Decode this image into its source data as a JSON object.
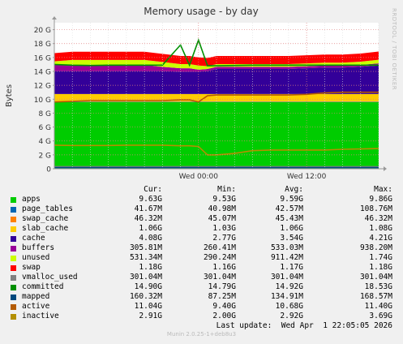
{
  "chart_data": {
    "type": "area",
    "title": "Memory usage - by day",
    "ylabel": "Bytes",
    "side_label": "RRDTOOL / TOBI OETIKER",
    "ylim": [
      0,
      21
    ],
    "y_ticks": [
      "0",
      "2 G",
      "4 G",
      "6 G",
      "8 G",
      "10 G",
      "12 G",
      "14 G",
      "16 G",
      "18 G",
      "20 G"
    ],
    "y_tick_values": [
      0,
      2,
      4,
      6,
      8,
      10,
      12,
      14,
      16,
      18,
      20
    ],
    "x_ticks": [
      "Wed 00:00",
      "Wed 12:00"
    ],
    "x_tick_hours": [
      10,
      22
    ],
    "x_range_hours": [
      -6,
      30
    ],
    "grid": true,
    "x": [
      -6,
      -4,
      -2,
      0,
      2,
      4,
      6,
      8,
      9,
      10,
      11,
      12,
      14,
      16,
      18,
      20,
      22,
      24,
      26,
      28,
      30
    ],
    "series": [
      {
        "name": "apps",
        "color": "#00cc00",
        "values": [
          9.6,
          9.6,
          9.6,
          9.6,
          9.6,
          9.6,
          9.6,
          9.6,
          9.6,
          9.6,
          9.6,
          9.6,
          9.6,
          9.6,
          9.6,
          9.6,
          9.6,
          9.6,
          9.6,
          9.6,
          9.6
        ]
      },
      {
        "name": "page_tables",
        "color": "#0066b3",
        "values": [
          0.04,
          0.04,
          0.04,
          0.04,
          0.04,
          0.04,
          0.04,
          0.04,
          0.04,
          0.04,
          0.04,
          0.04,
          0.04,
          0.04,
          0.04,
          0.04,
          0.04,
          0.04,
          0.04,
          0.04,
          0.04
        ]
      },
      {
        "name": "swap_cache",
        "color": "#ff8000",
        "values": [
          0.05,
          0.05,
          0.05,
          0.05,
          0.05,
          0.05,
          0.05,
          0.05,
          0.05,
          0.05,
          0.05,
          0.05,
          0.05,
          0.05,
          0.05,
          0.05,
          0.05,
          0.05,
          0.05,
          0.05,
          0.05
        ]
      },
      {
        "name": "slab_cache",
        "color": "#ffcc00",
        "values": [
          1.06,
          1.06,
          1.06,
          1.06,
          1.06,
          1.06,
          1.06,
          1.06,
          1.06,
          1.06,
          1.06,
          1.06,
          1.06,
          1.06,
          1.06,
          1.06,
          1.06,
          1.06,
          1.06,
          1.06,
          1.06
        ]
      },
      {
        "name": "cache",
        "color": "#330099",
        "values": [
          3.3,
          3.3,
          3.3,
          3.3,
          3.3,
          3.3,
          3.3,
          3.2,
          3.2,
          3.2,
          3.3,
          3.6,
          3.6,
          3.6,
          3.6,
          3.6,
          3.7,
          3.8,
          3.8,
          3.9,
          4.1
        ]
      },
      {
        "name": "buffers",
        "color": "#990099",
        "values": [
          0.9,
          0.9,
          0.9,
          0.9,
          0.9,
          0.9,
          0.6,
          0.5,
          0.5,
          0.3,
          0.3,
          0.3,
          0.3,
          0.3,
          0.3,
          0.3,
          0.3,
          0.3,
          0.3,
          0.3,
          0.3
        ]
      },
      {
        "name": "unused",
        "color": "#ccff00",
        "values": [
          0.5,
          0.7,
          0.7,
          0.7,
          0.7,
          0.7,
          0.7,
          0.6,
          0.6,
          0.6,
          0.4,
          0.4,
          0.4,
          0.4,
          0.4,
          0.4,
          0.4,
          0.4,
          0.4,
          0.45,
          0.53
        ]
      },
      {
        "name": "swap",
        "color": "#ff0000",
        "values": [
          1.17,
          1.17,
          1.17,
          1.17,
          1.17,
          1.17,
          1.17,
          1.17,
          1.17,
          1.17,
          1.17,
          1.17,
          1.17,
          1.17,
          1.17,
          1.17,
          1.17,
          1.17,
          1.17,
          1.17,
          1.18
        ]
      }
    ],
    "lines": [
      {
        "name": "vmalloc_used",
        "color": "#808080",
        "values": [
          0.3,
          0.3,
          0.3,
          0.3,
          0.3,
          0.3,
          0.3,
          0.3,
          0.3,
          0.3,
          0.3,
          0.3,
          0.3,
          0.3,
          0.3,
          0.3,
          0.3,
          0.3,
          0.3,
          0.3,
          0.3
        ]
      },
      {
        "name": "committed",
        "color": "#008f00",
        "values": [
          15.0,
          14.9,
          14.85,
          14.9,
          14.9,
          14.9,
          14.9,
          17.8,
          14.9,
          18.5,
          14.8,
          14.8,
          14.85,
          14.9,
          14.9,
          14.9,
          14.9,
          14.9,
          14.9,
          14.9,
          14.9
        ]
      },
      {
        "name": "mapped",
        "color": "#00487d",
        "values": [
          0.16,
          0.16,
          0.16,
          0.16,
          0.16,
          0.16,
          0.16,
          0.16,
          0.16,
          0.16,
          0.16,
          0.16,
          0.16,
          0.16,
          0.16,
          0.16,
          0.16,
          0.16,
          0.16,
          0.16,
          0.16
        ]
      },
      {
        "name": "active",
        "color": "#b35a00",
        "values": [
          9.6,
          9.7,
          9.8,
          9.8,
          9.8,
          9.8,
          9.8,
          9.9,
          9.9,
          9.6,
          10.5,
          10.6,
          10.6,
          10.6,
          10.6,
          10.6,
          10.7,
          10.9,
          11.0,
          11.0,
          11.0
        ]
      },
      {
        "name": "inactive",
        "color": "#b38f00",
        "values": [
          3.4,
          3.35,
          3.35,
          3.35,
          3.4,
          3.4,
          3.4,
          3.3,
          3.3,
          3.2,
          2.0,
          2.0,
          2.2,
          2.6,
          2.7,
          2.7,
          2.7,
          2.7,
          2.8,
          2.85,
          2.9
        ]
      }
    ],
    "legend": {
      "headers": [
        "Cur:",
        "Min:",
        "Avg:",
        "Max:"
      ],
      "rows": [
        {
          "name": "apps",
          "color": "#00cc00",
          "cur": "9.63G",
          "min": "9.53G",
          "avg": "9.59G",
          "max": "9.86G"
        },
        {
          "name": "page_tables",
          "color": "#0066b3",
          "cur": "41.67M",
          "min": "40.98M",
          "avg": "42.57M",
          "max": "108.76M"
        },
        {
          "name": "swap_cache",
          "color": "#ff8000",
          "cur": "46.32M",
          "min": "45.07M",
          "avg": "45.43M",
          "max": "46.32M"
        },
        {
          "name": "slab_cache",
          "color": "#ffcc00",
          "cur": "1.06G",
          "min": "1.03G",
          "avg": "1.06G",
          "max": "1.08G"
        },
        {
          "name": "cache",
          "color": "#330099",
          "cur": "4.08G",
          "min": "2.77G",
          "avg": "3.54G",
          "max": "4.21G"
        },
        {
          "name": "buffers",
          "color": "#990099",
          "cur": "305.81M",
          "min": "260.41M",
          "avg": "533.03M",
          "max": "938.20M"
        },
        {
          "name": "unused",
          "color": "#ccff00",
          "cur": "531.34M",
          "min": "290.24M",
          "avg": "911.42M",
          "max": "1.74G"
        },
        {
          "name": "swap",
          "color": "#ff0000",
          "cur": "1.18G",
          "min": "1.16G",
          "avg": "1.17G",
          "max": "1.18G"
        },
        {
          "name": "vmalloc_used",
          "color": "#808080",
          "cur": "301.04M",
          "min": "301.04M",
          "avg": "301.04M",
          "max": "301.04M"
        },
        {
          "name": "committed",
          "color": "#008f00",
          "cur": "14.90G",
          "min": "14.79G",
          "avg": "14.92G",
          "max": "18.53G"
        },
        {
          "name": "mapped",
          "color": "#00487d",
          "cur": "160.32M",
          "min": "87.25M",
          "avg": "134.91M",
          "max": "168.57M"
        },
        {
          "name": "active",
          "color": "#b35a00",
          "cur": "11.04G",
          "min": "9.40G",
          "avg": "10.68G",
          "max": "11.40G"
        },
        {
          "name": "inactive",
          "color": "#b38f00",
          "cur": "2.91G",
          "min": "2.00G",
          "avg": "2.92G",
          "max": "3.69G"
        }
      ]
    },
    "last_update": "Last update:  Wed Apr  1 22:05:05 2026",
    "footer": "Munin 2.0.25-1+deb8u3"
  }
}
